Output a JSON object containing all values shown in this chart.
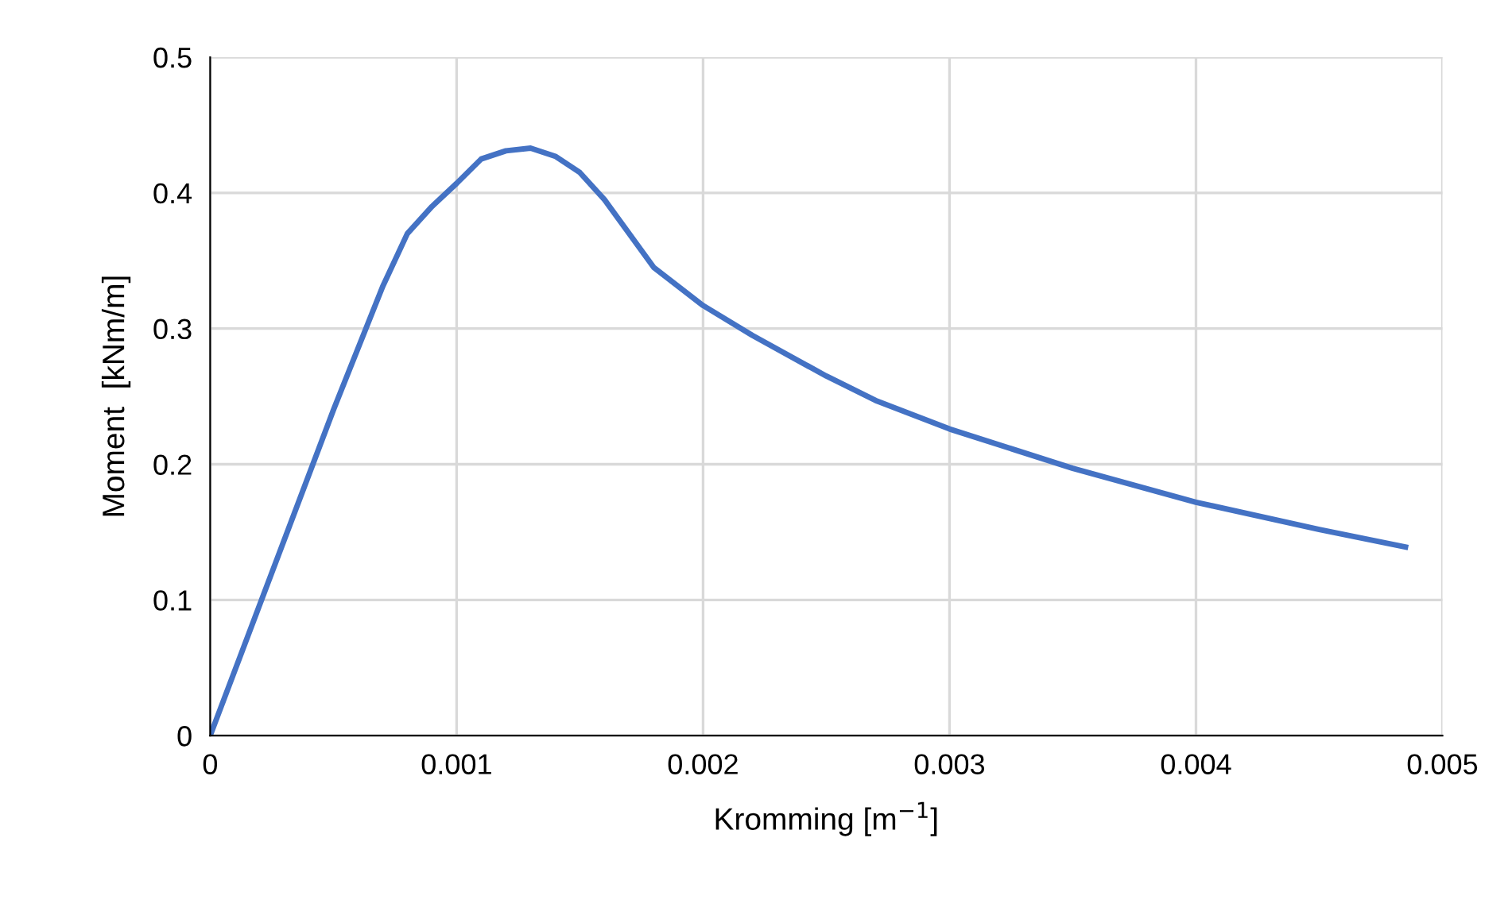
{
  "chart_data": {
    "type": "line",
    "xlabel": "Kromming [m$^{−1}$]",
    "ylabel": "Moment  [kNm/m]",
    "x": [
      0,
      0.0005,
      0.0007,
      0.0008,
      0.0009,
      0.001,
      0.0011,
      0.0012,
      0.0013,
      0.0014,
      0.0015,
      0.0016,
      0.0018,
      0.002,
      0.0022,
      0.0025,
      0.0027,
      0.003,
      0.0035,
      0.004,
      0.0045,
      0.00485
    ],
    "series": [
      {
        "color": "#4472c4",
        "values": [
          0,
          0.24,
          0.331,
          0.37,
          0.39,
          0.407,
          0.425,
          0.431,
          0.433,
          0.427,
          0.415,
          0.395,
          0.345,
          0.317,
          0.295,
          0.265,
          0.247,
          0.226,
          0.197,
          0.172,
          0.152,
          0.139
        ]
      }
    ],
    "xlim": [
      0,
      0.005
    ],
    "xticks": [
      0,
      0.001,
      0.002,
      0.003,
      0.004,
      0.005
    ],
    "ylim": [
      0,
      0.5
    ],
    "yticks": [
      0,
      0.1,
      0.2,
      0.3,
      0.4,
      0.5
    ],
    "grid": true,
    "marker": "none",
    "line_style": "solid"
  }
}
